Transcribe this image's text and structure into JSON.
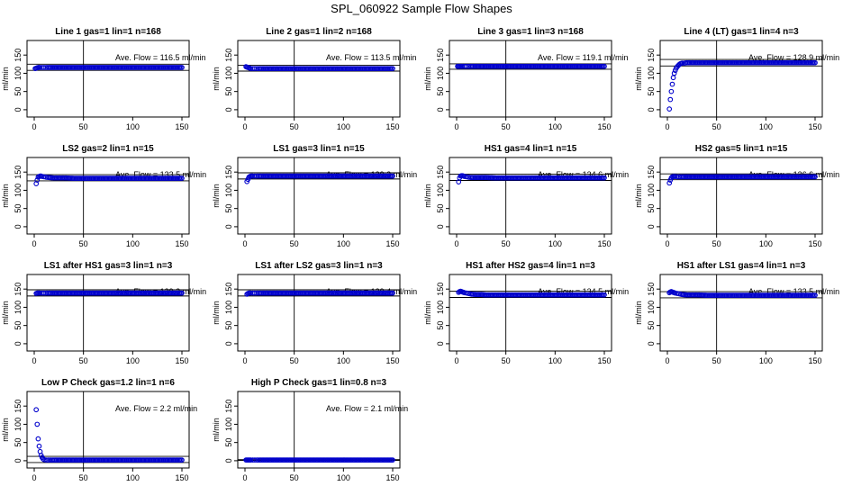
{
  "title": "SPL_060922  Sample Flow Shapes",
  "colors": {
    "points": "#0000cc",
    "axes": "#000000"
  },
  "chart_data": [
    {
      "type": "scatter",
      "title": "Line 1 gas=1 lin=1 n=168",
      "xlabel": "",
      "ylabel": "ml/min",
      "xticks": [
        0,
        50,
        100,
        150
      ],
      "yticks": [
        0,
        50,
        100,
        150
      ],
      "xlim": [
        0,
        150
      ],
      "ylim": [
        -20,
        190
      ],
      "avg_label": "Ave. Flow =  116.5  ml/min",
      "hlines": [
        125,
        108
      ],
      "vline": 50,
      "x": [
        1,
        2,
        3,
        4,
        5,
        6,
        8,
        10,
        12,
        15,
        20,
        30,
        40,
        60,
        80,
        100,
        120,
        140,
        150
      ],
      "y": [
        113,
        114,
        115,
        116,
        116,
        116,
        116,
        116,
        116,
        116,
        116,
        116,
        116,
        116,
        116,
        116,
        116,
        116,
        116
      ]
    },
    {
      "type": "scatter",
      "title": "Line 2 gas=1 lin=2 n=168",
      "xlabel": "",
      "ylabel": "ml/min",
      "xticks": [
        0,
        50,
        100,
        150
      ],
      "yticks": [
        0,
        50,
        100,
        150
      ],
      "xlim": [
        0,
        150
      ],
      "ylim": [
        -20,
        190
      ],
      "avg_label": "Ave. Flow =  113.5  ml/min",
      "hlines": [
        122,
        106
      ],
      "vline": 50,
      "x": [
        1,
        2,
        3,
        4,
        5,
        6,
        8,
        10,
        12,
        15,
        20,
        30,
        40,
        60,
        80,
        100,
        120,
        140,
        150
      ],
      "y": [
        118,
        117,
        116,
        115,
        114,
        113,
        113,
        113,
        113,
        113,
        113,
        113,
        113,
        113,
        113,
        113,
        113,
        113,
        113
      ]
    },
    {
      "type": "scatter",
      "title": "Line 3 gas=1 lin=3 n=168",
      "xlabel": "",
      "ylabel": "ml/min",
      "xticks": [
        0,
        50,
        100,
        150
      ],
      "yticks": [
        0,
        50,
        100,
        150
      ],
      "xlim": [
        0,
        150
      ],
      "ylim": [
        -20,
        190
      ],
      "avg_label": "Ave. Flow =  119.1  ml/min",
      "hlines": [
        126,
        111
      ],
      "vline": 50,
      "x": [
        1,
        2,
        3,
        4,
        5,
        6,
        8,
        10,
        12,
        15,
        20,
        30,
        40,
        60,
        80,
        100,
        120,
        140,
        150
      ],
      "y": [
        119,
        119,
        119,
        119,
        119,
        119,
        119,
        119,
        119,
        119,
        119,
        119,
        119,
        119,
        119,
        119,
        119,
        119,
        119
      ]
    },
    {
      "type": "scatter",
      "title": "Line 4 (LT) gas=1 lin=4 n=3",
      "xlabel": "",
      "ylabel": "ml/min",
      "xticks": [
        0,
        50,
        100,
        150
      ],
      "yticks": [
        0,
        50,
        100,
        150
      ],
      "xlim": [
        0,
        150
      ],
      "ylim": [
        -20,
        190
      ],
      "avg_label": "Ave. Flow =  128.9  ml/min",
      "hlines": [
        138,
        120
      ],
      "vline": 50,
      "x": [
        2,
        3,
        4,
        5,
        6,
        7,
        8,
        9,
        10,
        11,
        12,
        13,
        14,
        15,
        17,
        20,
        25,
        30,
        40,
        60,
        80,
        100,
        120,
        140,
        150
      ],
      "y": [
        2,
        28,
        50,
        70,
        88,
        100,
        108,
        114,
        118,
        121,
        124,
        126,
        127,
        128,
        128,
        129,
        129,
        129,
        129,
        129,
        129,
        129,
        129,
        129,
        129
      ]
    },
    {
      "type": "scatter",
      "title": "LS2 gas=2 lin=1 n=15",
      "xlabel": "",
      "ylabel": "ml/min",
      "xticks": [
        0,
        50,
        100,
        150
      ],
      "yticks": [
        0,
        50,
        100,
        150
      ],
      "xlim": [
        0,
        150
      ],
      "ylim": [
        -20,
        190
      ],
      "avg_label": "Ave. Flow =  133.5  ml/min",
      "hlines": [
        143,
        126
      ],
      "vline": 50,
      "x": [
        2,
        3,
        4,
        5,
        6,
        7,
        8,
        10,
        12,
        15,
        20,
        25,
        30,
        40,
        60,
        80,
        100,
        120,
        140,
        150
      ],
      "y": [
        118,
        128,
        136,
        138,
        139,
        139,
        138,
        137,
        136,
        135,
        134,
        134,
        134,
        133,
        133,
        133,
        133,
        133,
        133,
        133
      ]
    },
    {
      "type": "scatter",
      "title": "LS1 gas=3 lin=1 n=15",
      "xlabel": "",
      "ylabel": "ml/min",
      "xticks": [
        0,
        50,
        100,
        150
      ],
      "yticks": [
        0,
        50,
        100,
        150
      ],
      "xlim": [
        0,
        150
      ],
      "ylim": [
        -20,
        190
      ],
      "avg_label": "Ave. Flow =  139.3  ml/min",
      "hlines": [
        148,
        131
      ],
      "vline": 50,
      "x": [
        2,
        3,
        4,
        5,
        6,
        7,
        8,
        10,
        12,
        15,
        20,
        25,
        30,
        40,
        60,
        80,
        100,
        120,
        140,
        150
      ],
      "y": [
        124,
        130,
        136,
        138,
        139,
        139,
        139,
        139,
        139,
        139,
        139,
        139,
        139,
        139,
        139,
        139,
        139,
        139,
        139,
        139
      ]
    },
    {
      "type": "scatter",
      "title": "HS1 gas=4 lin=1 n=15",
      "xlabel": "",
      "ylabel": "ml/min",
      "xticks": [
        0,
        50,
        100,
        150
      ],
      "yticks": [
        0,
        50,
        100,
        150
      ],
      "xlim": [
        0,
        150
      ],
      "ylim": [
        -20,
        190
      ],
      "avg_label": "Ave. Flow =  134.6  ml/min",
      "hlines": [
        144,
        127
      ],
      "vline": 50,
      "x": [
        2,
        3,
        4,
        5,
        6,
        7,
        8,
        10,
        12,
        15,
        20,
        25,
        30,
        40,
        60,
        80,
        100,
        120,
        140,
        150
      ],
      "y": [
        123,
        134,
        139,
        140,
        140,
        139,
        138,
        137,
        136,
        135,
        135,
        135,
        135,
        134,
        134,
        134,
        134,
        134,
        134,
        134
      ]
    },
    {
      "type": "scatter",
      "title": "HS2 gas=5 lin=1 n=15",
      "xlabel": "",
      "ylabel": "ml/min",
      "xticks": [
        0,
        50,
        100,
        150
      ],
      "yticks": [
        0,
        50,
        100,
        150
      ],
      "xlim": [
        0,
        150
      ],
      "ylim": [
        -20,
        190
      ],
      "avg_label": "Ave. Flow =  136.6  ml/min",
      "hlines": [
        145,
        129
      ],
      "vline": 50,
      "x": [
        2,
        3,
        4,
        5,
        6,
        7,
        8,
        10,
        12,
        15,
        20,
        25,
        30,
        40,
        60,
        80,
        100,
        120,
        140,
        150
      ],
      "y": [
        120,
        128,
        134,
        137,
        138,
        138,
        138,
        137,
        137,
        137,
        137,
        137,
        137,
        137,
        137,
        137,
        137,
        137,
        137,
        137
      ]
    },
    {
      "type": "scatter",
      "title": "LS1 after HS1 gas=3 lin=1 n=3",
      "xlabel": "",
      "ylabel": "ml/min",
      "xticks": [
        0,
        50,
        100,
        150
      ],
      "yticks": [
        0,
        50,
        100,
        150
      ],
      "xlim": [
        0,
        150
      ],
      "ylim": [
        -20,
        190
      ],
      "avg_label": "Ave. Flow =  139.3  ml/min",
      "hlines": [
        148,
        131
      ],
      "vline": 50,
      "x": [
        2,
        3,
        4,
        5,
        6,
        8,
        10,
        12,
        15,
        20,
        25,
        30,
        40,
        60,
        80,
        100,
        120,
        140,
        150
      ],
      "y": [
        138,
        139,
        139,
        139,
        139,
        139,
        139,
        139,
        139,
        139,
        139,
        139,
        139,
        139,
        139,
        139,
        139,
        139,
        139
      ]
    },
    {
      "type": "scatter",
      "title": "LS1 after LS2 gas=3 lin=1 n=3",
      "xlabel": "",
      "ylabel": "ml/min",
      "xticks": [
        0,
        50,
        100,
        150
      ],
      "yticks": [
        0,
        50,
        100,
        150
      ],
      "xlim": [
        0,
        150
      ],
      "ylim": [
        -20,
        190
      ],
      "avg_label": "Ave. Flow =  139.4  ml/min",
      "hlines": [
        148,
        131
      ],
      "vline": 50,
      "x": [
        2,
        3,
        4,
        5,
        6,
        8,
        10,
        12,
        15,
        20,
        25,
        30,
        40,
        60,
        80,
        100,
        120,
        140,
        150
      ],
      "y": [
        136,
        138,
        139,
        139,
        139,
        139,
        139,
        139,
        139,
        139,
        139,
        139,
        139,
        139,
        139,
        139,
        139,
        139,
        139
      ]
    },
    {
      "type": "scatter",
      "title": "HS1 after HS2 gas=4 lin=1 n=3",
      "xlabel": "",
      "ylabel": "ml/min",
      "xticks": [
        0,
        50,
        100,
        150
      ],
      "yticks": [
        0,
        50,
        100,
        150
      ],
      "xlim": [
        0,
        150
      ],
      "ylim": [
        -20,
        190
      ],
      "avg_label": "Ave. Flow =  134.5  ml/min",
      "hlines": [
        144,
        127
      ],
      "vline": 50,
      "x": [
        2,
        3,
        4,
        5,
        6,
        7,
        8,
        10,
        12,
        15,
        20,
        25,
        30,
        40,
        60,
        80,
        100,
        120,
        140,
        150
      ],
      "y": [
        141,
        143,
        144,
        143,
        142,
        141,
        140,
        139,
        138,
        136,
        135,
        135,
        134,
        134,
        134,
        134,
        134,
        134,
        134,
        134
      ]
    },
    {
      "type": "scatter",
      "title": "HS1 after LS1 gas=4 lin=1 n=3",
      "xlabel": "",
      "ylabel": "ml/min",
      "xticks": [
        0,
        50,
        100,
        150
      ],
      "yticks": [
        0,
        50,
        100,
        150
      ],
      "xlim": [
        0,
        150
      ],
      "ylim": [
        -20,
        190
      ],
      "avg_label": "Ave. Flow =  133.5  ml/min",
      "hlines": [
        143,
        126
      ],
      "vline": 50,
      "x": [
        2,
        3,
        4,
        5,
        6,
        7,
        8,
        10,
        12,
        15,
        20,
        25,
        30,
        40,
        60,
        80,
        100,
        120,
        140,
        150
      ],
      "y": [
        140,
        142,
        143,
        142,
        141,
        140,
        139,
        138,
        137,
        135,
        134,
        134,
        134,
        133,
        133,
        133,
        133,
        133,
        133,
        133
      ]
    },
    {
      "type": "scatter",
      "title": "Low P Check gas=1.2 lin=1 n=6",
      "xlabel": "",
      "ylabel": "ml/min",
      "xticks": [
        0,
        50,
        100,
        150
      ],
      "yticks": [
        0,
        50,
        100,
        150
      ],
      "xlim": [
        0,
        150
      ],
      "ylim": [
        -20,
        190
      ],
      "avg_label": "Ave. Flow =  2.2  ml/min",
      "hlines": [
        12,
        -5
      ],
      "vline": 50,
      "x": [
        2,
        3,
        4,
        5,
        6,
        7,
        8,
        9,
        10,
        12,
        14,
        17,
        20,
        30,
        40,
        60,
        80,
        100,
        120,
        140,
        150
      ],
      "y": [
        140,
        100,
        60,
        40,
        25,
        15,
        9,
        5,
        3,
        2,
        2,
        2,
        2,
        2,
        2,
        2,
        2,
        2,
        2,
        2,
        2
      ]
    },
    {
      "type": "scatter",
      "title": "High P Check gas=1 lin=0.8 n=3",
      "xlabel": "",
      "ylabel": "ml/min",
      "xticks": [
        0,
        50,
        100,
        150
      ],
      "yticks": [
        0,
        50,
        100,
        150
      ],
      "xlim": [
        0,
        150
      ],
      "ylim": [
        -20,
        190
      ],
      "avg_label": "Ave. Flow =  2.1  ml/min",
      "hlines": [
        3,
        1
      ],
      "vline": 50,
      "x": [
        1,
        2,
        3,
        4,
        5,
        6,
        8,
        10,
        12,
        15,
        20,
        30,
        40,
        60,
        80,
        100,
        120,
        140,
        150
      ],
      "y": [
        2,
        2,
        2,
        2,
        2,
        2,
        2,
        2,
        2,
        2,
        2,
        2,
        2,
        2,
        2,
        2,
        2,
        2,
        2
      ]
    }
  ]
}
